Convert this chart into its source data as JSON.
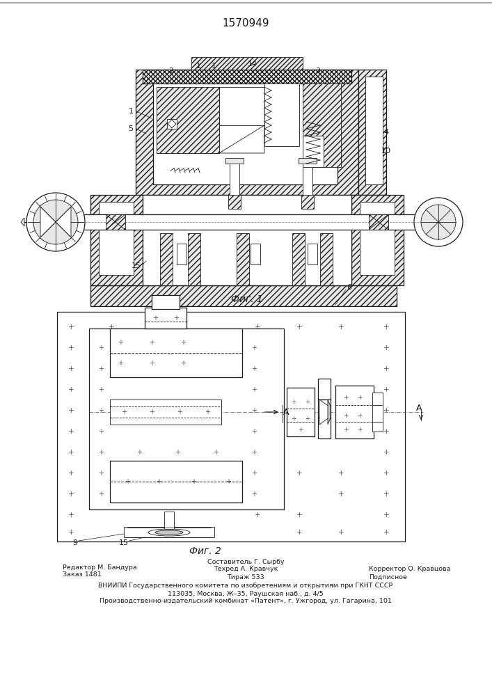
{
  "patent_number": "1570949",
  "fig1_caption": "Фиг. 1",
  "fig2_caption": "Фиг. 2",
  "footer_line1_left": "Редактор М. Бандура",
  "footer_line1_center": "Составитель Г. Сырбу",
  "footer_line2_left": "Заказ 1481",
  "footer_line2_center": "Техред А. Кравчук",
  "footer_line2_right": "Корректор О. Кравцова",
  "footer_line3_center": "Тираж 533",
  "footer_line3_right": "Подписное",
  "footer_vnipi": "ВНИИПИ Государственного комитета по изобретениям и открытиям при ГКНТ СССР",
  "footer_address": "113035, Москва, Ж–35, Раушская наб., д. 4/5",
  "footer_production": "Производственно-издательский комбинат «Патент», г. Ужгород, ул. Гагарина, 101",
  "bg_color": "#ffffff",
  "lc": "#1a1a1a",
  "hatch_fc": "#e8e8e8",
  "gray_fc": "#c8c8c8",
  "dark_fc": "#b0b0b0"
}
